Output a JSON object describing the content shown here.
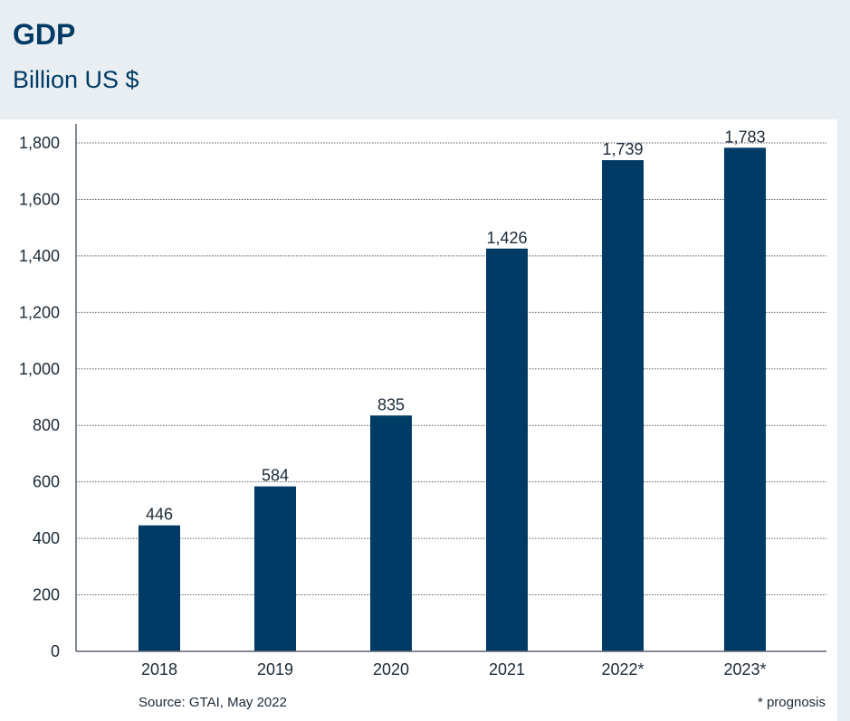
{
  "header": {
    "title": "GDP",
    "subtitle": "Billion US $"
  },
  "footer": {
    "source": "Source: GTAI, May 2022",
    "note": "* prognosis"
  },
  "colors": {
    "header_background": "#e9eef2",
    "bar": "#003b66",
    "title": "#003b66",
    "text": "#1b2a38",
    "gridline": "#5a6470",
    "axis": "#5a6470"
  },
  "chart_data": {
    "type": "bar",
    "title": "GDP",
    "subtitle": "Billion US $",
    "xlabel": "",
    "ylabel": "",
    "categories": [
      "2018",
      "2019",
      "2020",
      "2021",
      "2022*",
      "2023*"
    ],
    "values": [
      446,
      584,
      835,
      1426,
      1739,
      1783
    ],
    "value_labels": [
      "446",
      "584",
      "835",
      "1,426",
      "1,739",
      "1,783"
    ],
    "ylim": [
      0,
      1800
    ],
    "yticks": [
      0,
      200,
      400,
      600,
      800,
      1000,
      1200,
      1400,
      1600,
      1800
    ],
    "ytick_labels": [
      "0",
      "200",
      "400",
      "600",
      "800",
      "1,000",
      "1,200",
      "1,400",
      "1,600",
      "1,800"
    ],
    "grid": true,
    "grid_style": "dotted",
    "legend": "none"
  }
}
